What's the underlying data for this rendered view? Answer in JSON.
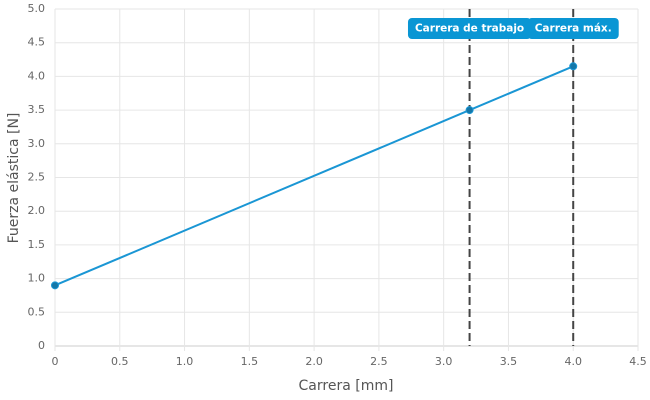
{
  "chart_data": {
    "type": "line",
    "xlabel": "Carrera [mm]",
    "ylabel": "Fuerza elástica [N]",
    "x": [
      0,
      3.2,
      4.0
    ],
    "series": [
      {
        "name": "Fuerza elástica",
        "color": "#1a96d4",
        "values": [
          0.9,
          3.5,
          4.15
        ]
      }
    ],
    "xlim": [
      0,
      4.5
    ],
    "xticks": [
      0,
      0.5,
      {
        "value": 1,
        "label": "1.0"
      },
      1.5,
      {
        "value": 2,
        "label": "2.0"
      },
      2.5,
      {
        "value": 3,
        "label": "3.0"
      },
      3.5,
      {
        "value": 4,
        "label": "4.0"
      },
      4.5
    ],
    "ylim": [
      0,
      5
    ],
    "yticks": [
      0,
      0.5,
      {
        "value": 1,
        "label": "1.0"
      },
      1.5,
      {
        "value": 2,
        "label": "2.0"
      },
      2.5,
      {
        "value": 3,
        "label": "3.0"
      },
      3.5,
      {
        "value": 4,
        "label": "4.0"
      },
      4.5,
      {
        "value": 5,
        "label": "5.0"
      }
    ],
    "grid": true,
    "annotations": [
      {
        "x": 3.2,
        "label": "Carrera de trabajo"
      },
      {
        "x": 4.0,
        "label": "Carrera máx."
      }
    ]
  }
}
